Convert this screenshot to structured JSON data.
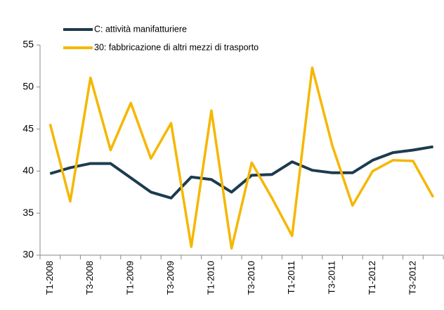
{
  "chart_data": {
    "type": "line",
    "categories": [
      "T1-2008",
      null,
      "T3-2008",
      null,
      "T1-2009",
      null,
      "T3-2009",
      null,
      "T1-2010",
      null,
      "T3-2010",
      null,
      "T1-2011",
      null,
      "T3-2011",
      null,
      "T1-2012",
      null,
      "T3-2012",
      null
    ],
    "series": [
      {
        "name": "C: attività manifatturiere",
        "color": "#1c3b4f",
        "values": [
          39.7,
          40.4,
          40.9,
          40.9,
          39.2,
          37.5,
          36.8,
          39.3,
          39.0,
          37.5,
          39.5,
          39.6,
          41.1,
          40.1,
          39.8,
          39.8,
          41.3,
          42.2,
          42.5,
          42.9
        ]
      },
      {
        "name": "30: fabbricazione di altri mezzi di trasporto",
        "color": "#f5b700",
        "values": [
          45.6,
          36.4,
          51.1,
          42.5,
          48.1,
          41.5,
          45.7,
          31.0,
          47.2,
          30.8,
          41.0,
          36.8,
          32.3,
          52.3,
          43.0,
          35.9,
          40.0,
          41.3,
          41.2,
          36.9
        ]
      }
    ],
    "ylim": [
      30,
      55
    ],
    "yticks": [
      30,
      35,
      40,
      45,
      50,
      55
    ],
    "grid": false,
    "legend": "top"
  }
}
